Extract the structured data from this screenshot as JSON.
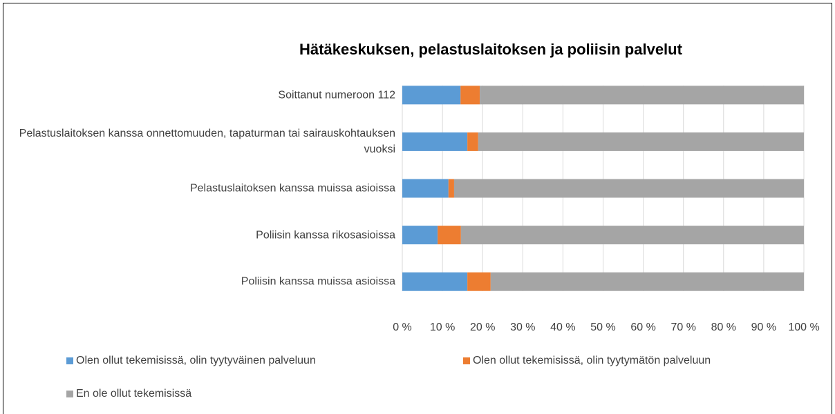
{
  "chart_data": {
    "type": "stacked_barh",
    "title": "Hätäkeskuksen, pelastuslaitoksen ja poliisin palvelut",
    "categories": [
      "Soittanut numeroon 112",
      "Pelastuslaitoksen kanssa onnettomuuden, tapaturman tai sairauskohtauksen vuoksi",
      "Pelastuslaitoksen kanssa muissa asioissa",
      "Poliisin kanssa rikosasioissa",
      "Poliisin kanssa muissa asioissa"
    ],
    "series": [
      {
        "name": "Olen ollut tekemisissä, olin tyytyväinen palveluun",
        "color": "#5b9bd5",
        "values": [
          14.5,
          16.2,
          11.5,
          8.8,
          16.2
        ]
      },
      {
        "name": "Olen ollut tekemisissä, olin tyytymätön palveluun",
        "color": "#ed7d31",
        "values": [
          4.8,
          2.7,
          1.4,
          5.8,
          5.8
        ]
      },
      {
        "name": "En ole ollut tekemisissä",
        "color": "#a5a5a5",
        "values": [
          80.7,
          81.1,
          87.1,
          85.4,
          78.0
        ]
      }
    ],
    "xlim": [
      0,
      100
    ],
    "xticks": [
      {
        "value": 0,
        "label": "0 %"
      },
      {
        "value": 10,
        "label": "10 %"
      },
      {
        "value": 20,
        "label": "20 %"
      },
      {
        "value": 30,
        "label": "30 %"
      },
      {
        "value": 40,
        "label": "40 %"
      },
      {
        "value": 50,
        "label": "50 %"
      },
      {
        "value": 60,
        "label": "60 %"
      },
      {
        "value": 70,
        "label": "70 %"
      },
      {
        "value": 80,
        "label": "80 %"
      },
      {
        "value": 90,
        "label": "90 %"
      },
      {
        "value": 100,
        "label": "100 %"
      }
    ],
    "grid": true,
    "legend": "bottom"
  }
}
